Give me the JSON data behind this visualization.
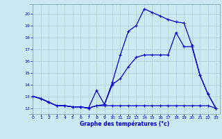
{
  "xlabel": "Graphe des températures (°c)",
  "background_color": "#cce8f0",
  "grid_color": "#aaccdd",
  "line_color": "#0000cc",
  "xlim": [
    -0.5,
    23.5
  ],
  "ylim": [
    11.5,
    20.8
  ],
  "xticks": [
    0,
    1,
    2,
    3,
    4,
    5,
    6,
    7,
    8,
    9,
    10,
    11,
    12,
    13,
    14,
    15,
    16,
    17,
    18,
    19,
    20,
    21,
    22,
    23
  ],
  "yticks": [
    12,
    13,
    14,
    15,
    16,
    17,
    18,
    19,
    20
  ],
  "line1_x": [
    0,
    1,
    2,
    3,
    4,
    5,
    6,
    7,
    8,
    9,
    10,
    11,
    12,
    13,
    14,
    15,
    16,
    17,
    18,
    19,
    20,
    21,
    22,
    23
  ],
  "line1_y": [
    13.0,
    12.8,
    12.5,
    12.2,
    12.2,
    12.1,
    12.1,
    12.0,
    12.2,
    12.2,
    12.2,
    12.2,
    12.2,
    12.2,
    12.2,
    12.2,
    12.2,
    12.2,
    12.2,
    12.2,
    12.2,
    12.2,
    12.2,
    12.0
  ],
  "line2_x": [
    0,
    1,
    2,
    3,
    4,
    5,
    6,
    7,
    8,
    9,
    10,
    11,
    12,
    13,
    14,
    15,
    16,
    17,
    18,
    19,
    20,
    21,
    22,
    23
  ],
  "line2_y": [
    13.0,
    12.8,
    12.5,
    12.2,
    12.2,
    12.1,
    12.1,
    12.0,
    13.5,
    12.3,
    14.0,
    14.5,
    15.5,
    16.3,
    16.5,
    16.5,
    16.5,
    16.5,
    18.4,
    17.2,
    17.2,
    14.8,
    13.2,
    12.0
  ],
  "line3_x": [
    0,
    1,
    2,
    3,
    4,
    5,
    6,
    7,
    8,
    9,
    10,
    11,
    12,
    13,
    14,
    15,
    16,
    17,
    18,
    19,
    20,
    21,
    22,
    23
  ],
  "line3_y": [
    13.0,
    12.8,
    12.5,
    12.2,
    12.2,
    12.1,
    12.1,
    12.0,
    12.2,
    12.3,
    14.2,
    16.5,
    18.5,
    19.0,
    20.4,
    20.1,
    19.8,
    19.5,
    19.3,
    19.2,
    17.3,
    14.8,
    13.2,
    12.0
  ]
}
